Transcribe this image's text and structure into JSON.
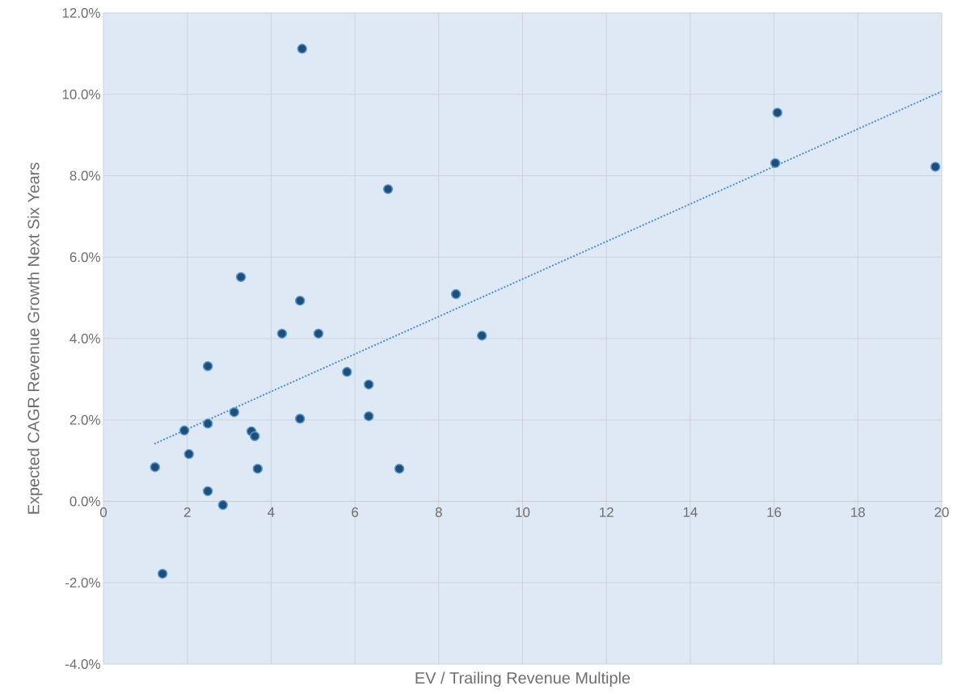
{
  "chart_data": {
    "type": "scatter",
    "xlabel": "EV / Trailing Revenue Multiple",
    "ylabel": "Expected CAGR Revenue Growth Next Six Years",
    "xlim": [
      0,
      20
    ],
    "ylim": [
      -4,
      12
    ],
    "xticks": [
      0,
      2,
      4,
      6,
      8,
      10,
      12,
      14,
      16,
      18,
      20
    ],
    "yticks": [
      {
        "value": -4,
        "label": "-4.0%"
      },
      {
        "value": -2,
        "label": "-2.0%"
      },
      {
        "value": 0,
        "label": "0.0%"
      },
      {
        "value": 2,
        "label": "2.0%"
      },
      {
        "value": 4,
        "label": "4.0%"
      },
      {
        "value": 6,
        "label": "6.0%"
      },
      {
        "value": 8,
        "label": "8.0%"
      },
      {
        "value": 10,
        "label": "10.0%"
      },
      {
        "value": 12,
        "label": "12.0%"
      }
    ],
    "grid": true,
    "series": [
      {
        "type": "line",
        "color": "#4a8fd6",
        "line_style": "dotted",
        "marker": "none",
        "x": [
          1.23,
          20
        ],
        "values": [
          1.42,
          10.07
        ]
      },
      {
        "color": "#1f4e79",
        "marker": "circle",
        "x": [
          1.23,
          1.41,
          1.93,
          2.04,
          2.49,
          2.49,
          2.49,
          2.85,
          3.12,
          3.28,
          3.53,
          3.61,
          3.68,
          4.26,
          4.69,
          4.69,
          4.74,
          5.13,
          5.81,
          6.33,
          6.33,
          6.79,
          7.06,
          8.41,
          9.03,
          16.03,
          16.08,
          19.85
        ],
        "values": [
          0.84,
          -1.78,
          1.74,
          1.16,
          3.32,
          1.91,
          0.25,
          -0.09,
          2.19,
          5.51,
          1.72,
          1.6,
          0.8,
          4.12,
          4.93,
          2.03,
          11.12,
          4.12,
          3.18,
          2.87,
          2.09,
          7.67,
          0.8,
          5.09,
          4.07,
          8.31,
          9.55,
          8.22
        ]
      }
    ]
  }
}
